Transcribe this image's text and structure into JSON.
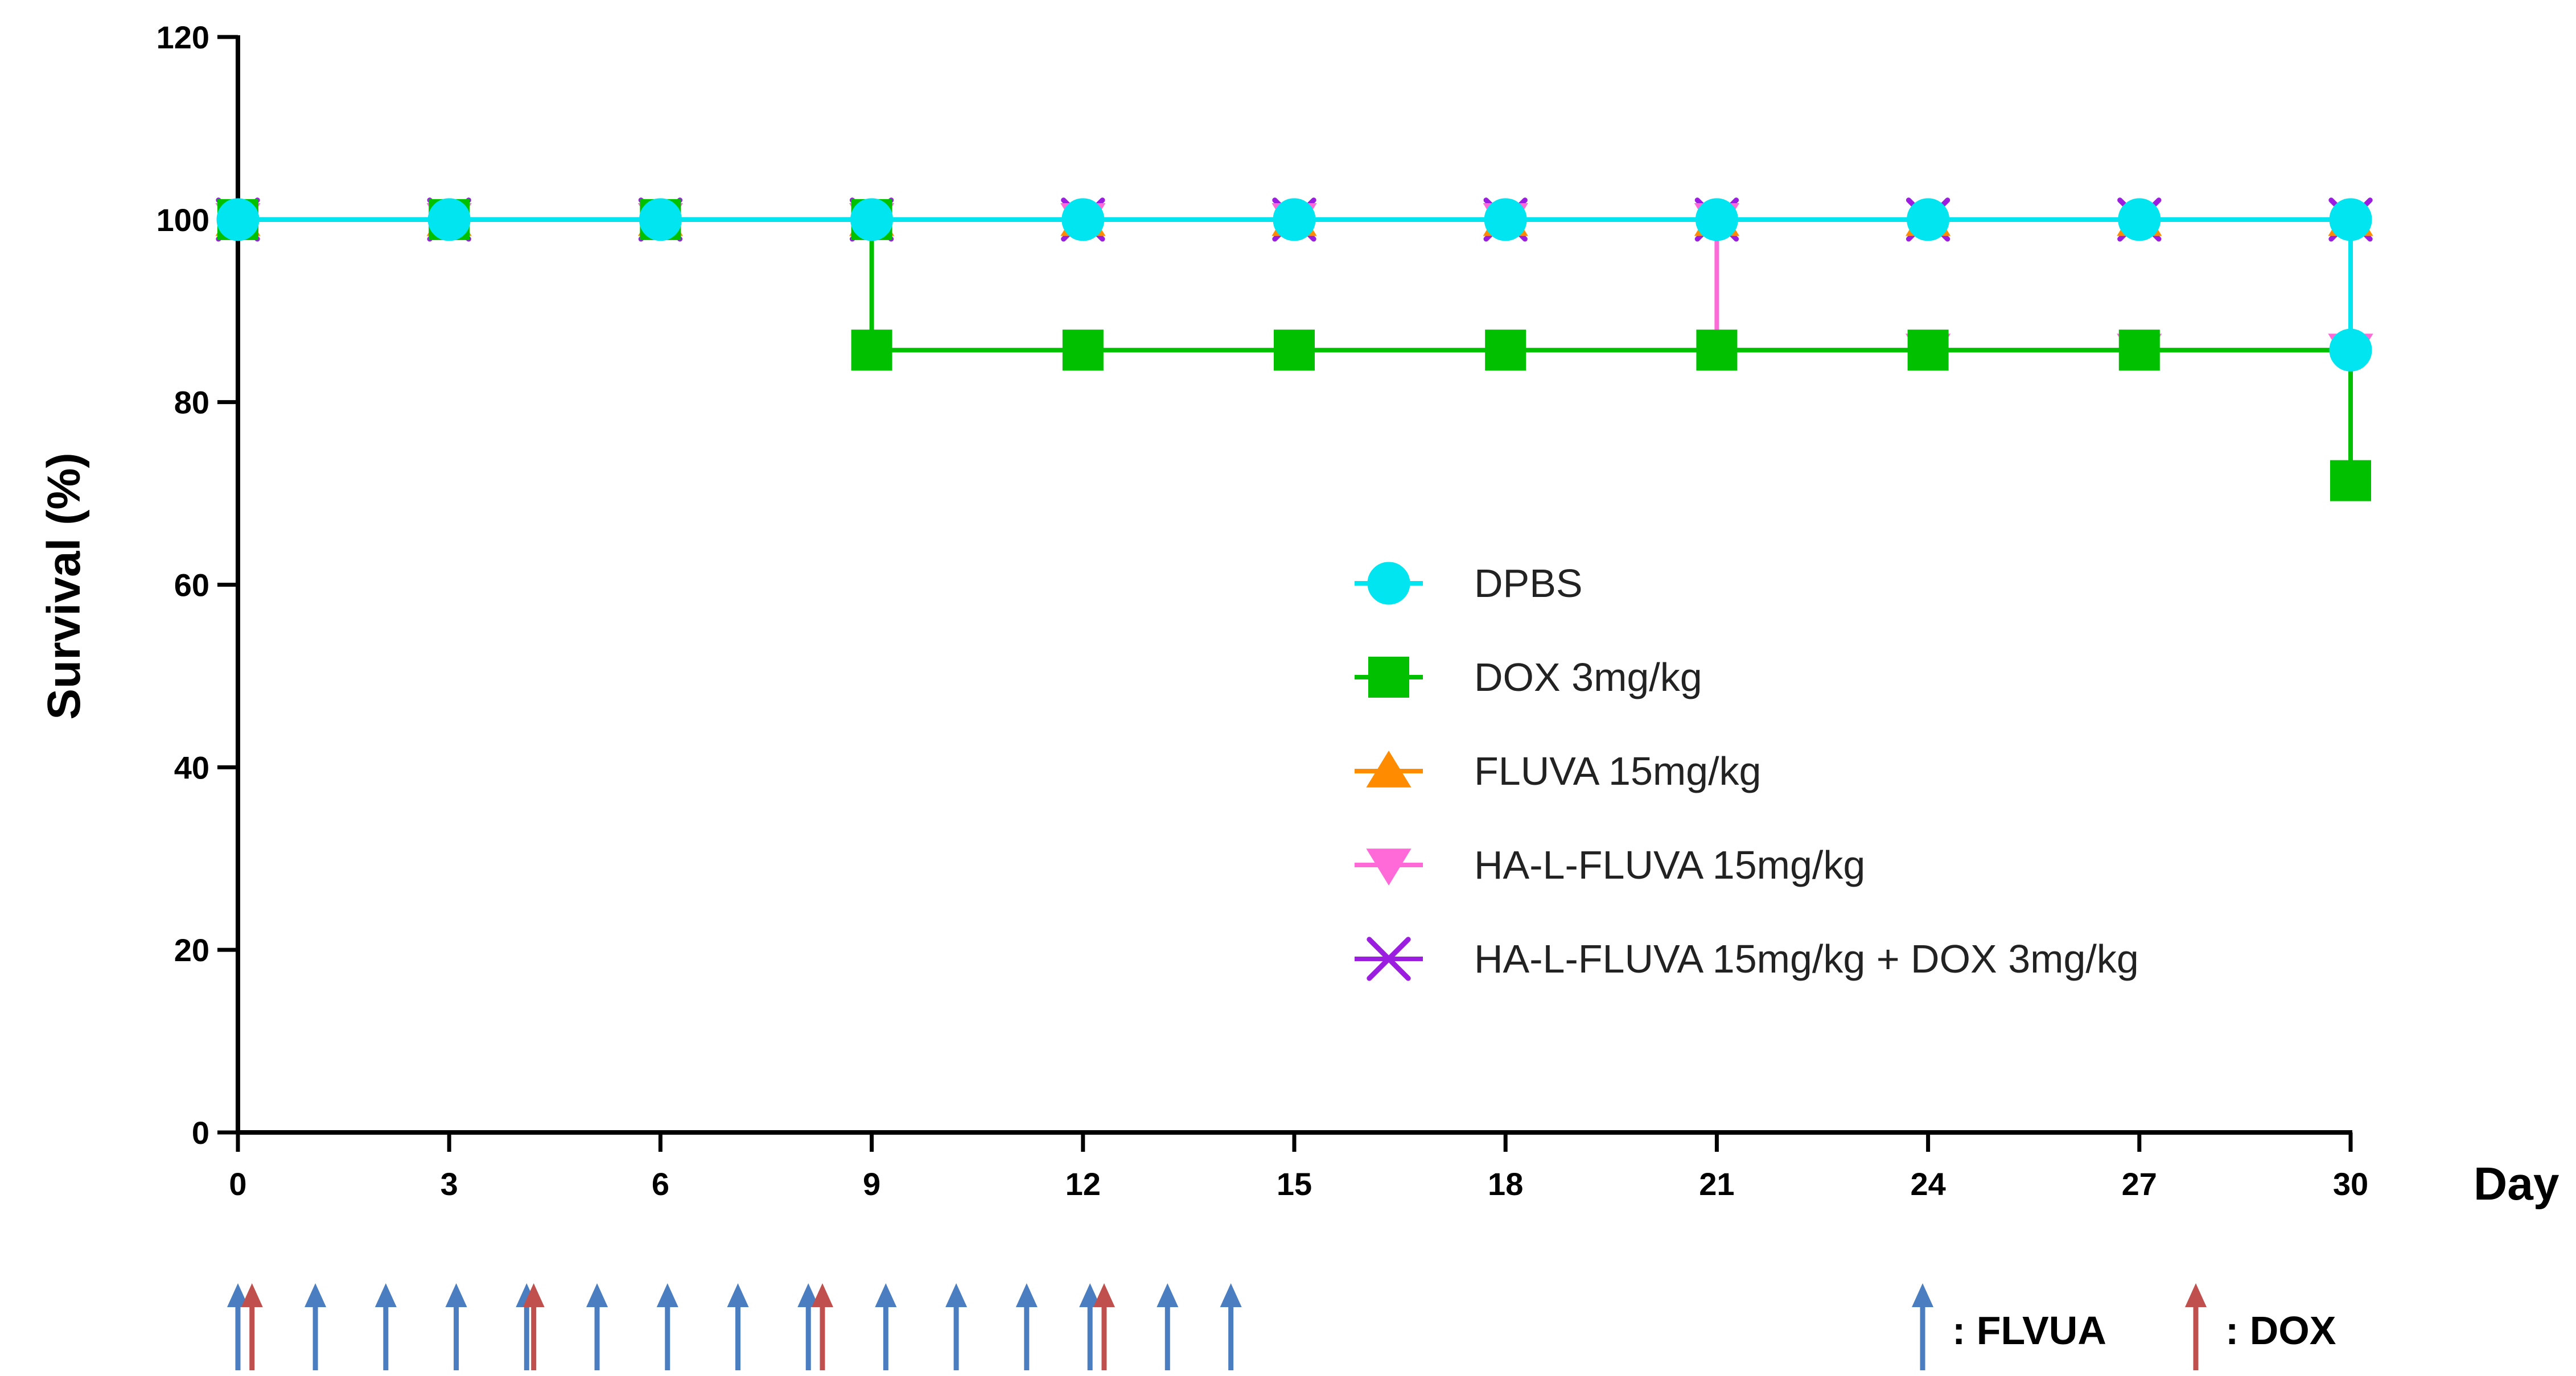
{
  "chart_data": {
    "type": "line",
    "step": true,
    "title": "",
    "xlabel": "Day",
    "ylabel": "Survival (%)",
    "xlim": [
      0,
      30
    ],
    "ylim": [
      0,
      120
    ],
    "xticks": [
      0,
      3,
      6,
      9,
      12,
      15,
      18,
      21,
      24,
      27,
      30
    ],
    "yticks": [
      0,
      20,
      40,
      60,
      80,
      100,
      120
    ],
    "grid": false,
    "legend_position": "center-right",
    "series": [
      {
        "name": "DPBS",
        "color": "#00e5f0",
        "marker": "circle",
        "steps": [
          [
            0,
            100
          ],
          [
            30,
            85.7
          ]
        ],
        "markers": [
          [
            0,
            100
          ],
          [
            3,
            100
          ],
          [
            6,
            100
          ],
          [
            9,
            100
          ],
          [
            12,
            100
          ],
          [
            15,
            100
          ],
          [
            18,
            100
          ],
          [
            21,
            100
          ],
          [
            24,
            100
          ],
          [
            27,
            100
          ],
          [
            30,
            100
          ],
          [
            30,
            85.7
          ]
        ]
      },
      {
        "name": "DOX 3mg/kg",
        "color": "#00c000",
        "marker": "square",
        "steps": [
          [
            0,
            100
          ],
          [
            9,
            85.7
          ],
          [
            30,
            71.4
          ]
        ],
        "markers": [
          [
            0,
            100
          ],
          [
            3,
            100
          ],
          [
            6,
            100
          ],
          [
            9,
            100
          ],
          [
            9,
            85.7
          ],
          [
            12,
            85.7
          ],
          [
            15,
            85.7
          ],
          [
            18,
            85.7
          ],
          [
            21,
            85.7
          ],
          [
            24,
            85.7
          ],
          [
            27,
            85.7
          ],
          [
            30,
            71.4
          ]
        ]
      },
      {
        "name": "FLUVA 15mg/kg",
        "color": "#ff8c00",
        "marker": "triangle-up",
        "steps": [
          [
            0,
            100
          ]
        ],
        "markers": [
          [
            0,
            100
          ],
          [
            3,
            100
          ],
          [
            6,
            100
          ],
          [
            9,
            100
          ],
          [
            12,
            100
          ],
          [
            15,
            100
          ],
          [
            18,
            100
          ],
          [
            21,
            100
          ],
          [
            24,
            100
          ],
          [
            27,
            100
          ],
          [
            30,
            100
          ]
        ]
      },
      {
        "name": "HA-L-FLUVA 15mg/kg",
        "color": "#ff69d8",
        "marker": "triangle-down",
        "steps": [
          [
            0,
            100
          ],
          [
            21,
            85.7
          ]
        ],
        "markers": [
          [
            0,
            100
          ],
          [
            3,
            100
          ],
          [
            6,
            100
          ],
          [
            9,
            100
          ],
          [
            12,
            100
          ],
          [
            15,
            100
          ],
          [
            18,
            100
          ],
          [
            21,
            100
          ],
          [
            24,
            85.7
          ],
          [
            27,
            85.7
          ],
          [
            30,
            85.7
          ]
        ]
      },
      {
        "name": "HA-L-FLUVA 15mg/kg + DOX 3mg/kg",
        "color": "#9b1ee0",
        "marker": "x",
        "steps": [
          [
            0,
            100
          ]
        ],
        "markers": [
          [
            0,
            100
          ],
          [
            3,
            100
          ],
          [
            6,
            100
          ],
          [
            9,
            100
          ],
          [
            12,
            100
          ],
          [
            15,
            100
          ],
          [
            18,
            100
          ],
          [
            21,
            100
          ],
          [
            24,
            100
          ],
          [
            27,
            100
          ],
          [
            30,
            100
          ]
        ]
      }
    ],
    "dosing": {
      "flvua_days": [
        0,
        1.1,
        2.1,
        3.1,
        4.1,
        5.1,
        6.1,
        7.1,
        8.1,
        9.2,
        10.2,
        11.2,
        12.1,
        13.2,
        14.1
      ],
      "dox_days": [
        0.2,
        4.2,
        8.3,
        12.3
      ],
      "flvua_color": "#4a7ec0",
      "dox_color": "#c0504d",
      "flvua_label": ": FLVUA",
      "dox_label": ": DOX"
    }
  }
}
